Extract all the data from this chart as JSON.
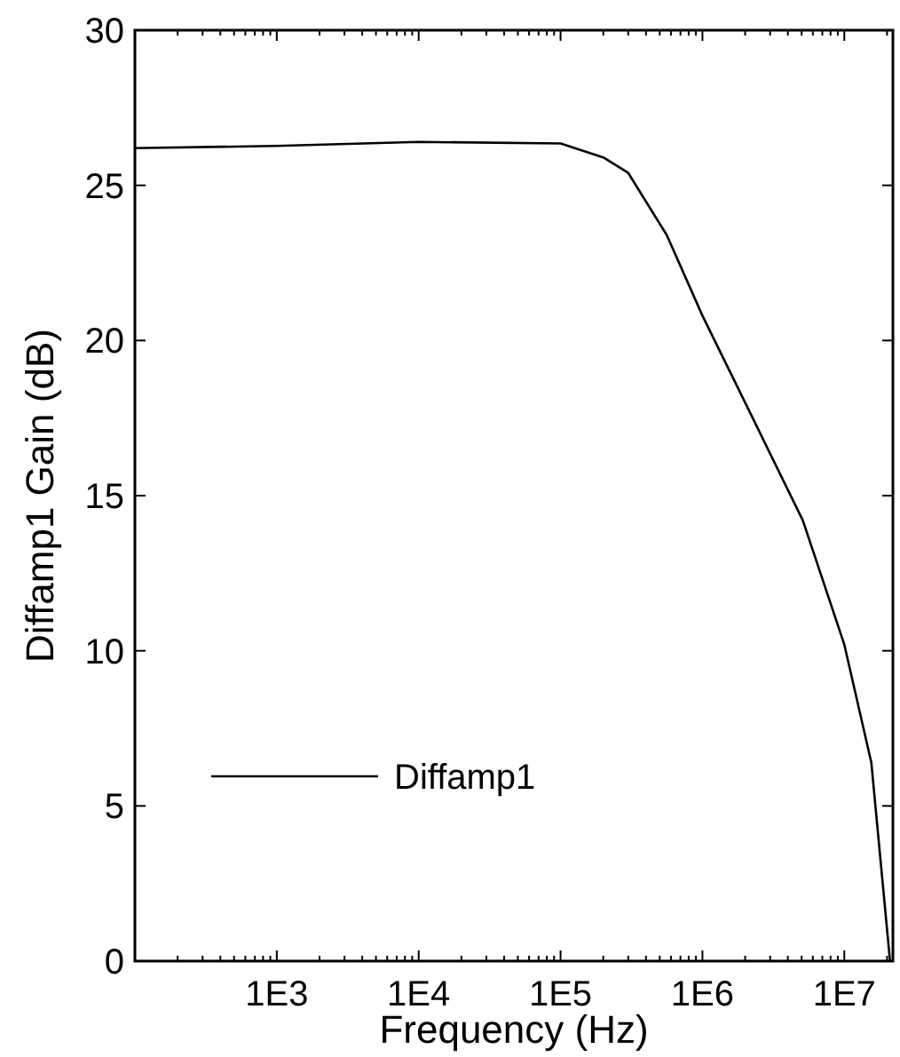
{
  "chart_data": {
    "type": "line",
    "xlabel": "Frequency (Hz)",
    "ylabel": "Diffamp1 Gain  (dB)",
    "log": "x",
    "x": [
      100,
      1000,
      10000,
      100000,
      200000,
      300000,
      560000,
      1000000,
      2100000,
      5100000,
      10000000,
      15500000,
      21000000
    ],
    "series": [
      {
        "name": "Diffamp1",
        "color": "#000000",
        "values": [
          26.2,
          26.27,
          26.4,
          26.35,
          25.9,
          25.4,
          23.4,
          20.8,
          17.8,
          14.2,
          10.2,
          6.4,
          0
        ]
      }
    ],
    "xlim": [
      100,
      22000000
    ],
    "ylim": [
      0,
      30
    ],
    "xticks": [
      {
        "value": 200,
        "label": null
      },
      {
        "value": 300,
        "label": null
      },
      {
        "value": 400,
        "label": null
      },
      {
        "value": 500,
        "label": null
      },
      {
        "value": 600,
        "label": null
      },
      {
        "value": 700,
        "label": null
      },
      {
        "value": 800,
        "label": null
      },
      {
        "value": 900,
        "label": null
      },
      {
        "value": 1000,
        "label": "1E3"
      },
      {
        "value": 2000,
        "label": null
      },
      {
        "value": 3000,
        "label": null
      },
      {
        "value": 4000,
        "label": null
      },
      {
        "value": 5000,
        "label": null
      },
      {
        "value": 6000,
        "label": null
      },
      {
        "value": 7000,
        "label": null
      },
      {
        "value": 8000,
        "label": null
      },
      {
        "value": 9000,
        "label": null
      },
      {
        "value": 10000,
        "label": "1E4"
      },
      {
        "value": 20000,
        "label": null
      },
      {
        "value": 30000,
        "label": null
      },
      {
        "value": 40000,
        "label": null
      },
      {
        "value": 50000,
        "label": null
      },
      {
        "value": 60000,
        "label": null
      },
      {
        "value": 70000,
        "label": null
      },
      {
        "value": 80000,
        "label": null
      },
      {
        "value": 90000,
        "label": null
      },
      {
        "value": 100000,
        "label": "1E5"
      },
      {
        "value": 200000,
        "label": null
      },
      {
        "value": 300000,
        "label": null
      },
      {
        "value": 400000,
        "label": null
      },
      {
        "value": 500000,
        "label": null
      },
      {
        "value": 600000,
        "label": null
      },
      {
        "value": 700000,
        "label": null
      },
      {
        "value": 800000,
        "label": null
      },
      {
        "value": 900000,
        "label": null
      },
      {
        "value": 1000000,
        "label": "1E6"
      },
      {
        "value": 2000000,
        "label": null
      },
      {
        "value": 3000000,
        "label": null
      },
      {
        "value": 4000000,
        "label": null
      },
      {
        "value": 5000000,
        "label": null
      },
      {
        "value": 6000000,
        "label": null
      },
      {
        "value": 7000000,
        "label": null
      },
      {
        "value": 8000000,
        "label": null
      },
      {
        "value": 9000000,
        "label": null
      },
      {
        "value": 10000000,
        "label": "1E7"
      },
      {
        "value": 20000000,
        "label": null
      }
    ],
    "yticks": [
      0,
      5,
      10,
      15,
      20,
      25,
      30
    ],
    "legend": "bottom left",
    "grid": false,
    "line_style": "solid"
  }
}
